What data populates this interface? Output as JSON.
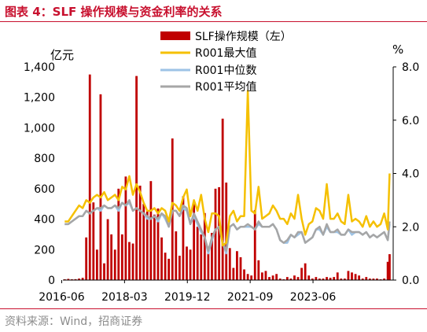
{
  "figure": {
    "title": "图表 4：SLF 操作规模与资金利率的关系",
    "source": "资料来源：Wind，招商证券"
  },
  "colors": {
    "bar": "#c00000",
    "max_line": "#f5c000",
    "median_line": "#9dc3e6",
    "avg_line": "#a6a6a6",
    "axis": "#000000",
    "title": "#c8102e"
  },
  "chart_data": {
    "type": "bar+line",
    "left_axis": {
      "unit": "亿元",
      "ylim": [
        0,
        1400
      ],
      "ticks": [
        "0",
        "200",
        "400",
        "600",
        "800",
        "1,000",
        "1,200",
        "1,400"
      ]
    },
    "right_axis": {
      "unit": "%",
      "ylim": [
        0,
        8
      ],
      "ticks": [
        "0.0",
        "2.0",
        "4.0",
        "6.0",
        "8.0"
      ]
    },
    "x_axis": {
      "start": 2016.45,
      "end": 2025.65,
      "ticks": [
        "2016-06",
        "2018-03",
        "2019-12",
        "2021-09",
        "2023-06"
      ]
    },
    "legend": {
      "position": "top-center",
      "entries": [
        "SLF操作规模（左）",
        "R001最大值",
        "R001中位数",
        "R001平均值"
      ]
    },
    "bars": {
      "name": "SLF操作规模（左）",
      "axis": "left",
      "x": [
        2016.5,
        2016.6,
        2016.7,
        2016.8,
        2016.9,
        2017.0,
        2017.1,
        2017.2,
        2017.3,
        2017.4,
        2017.5,
        2017.6,
        2017.7,
        2017.8,
        2017.9,
        2018.0,
        2018.1,
        2018.2,
        2018.3,
        2018.4,
        2018.5,
        2018.6,
        2018.7,
        2018.8,
        2018.9,
        2019.0,
        2019.1,
        2019.2,
        2019.3,
        2019.4,
        2019.5,
        2019.6,
        2019.7,
        2019.8,
        2019.9,
        2020.0,
        2020.1,
        2020.2,
        2020.3,
        2020.4,
        2020.5,
        2020.6,
        2020.7,
        2020.8,
        2020.9,
        2021.0,
        2021.1,
        2021.2,
        2021.3,
        2021.4,
        2021.5,
        2021.6,
        2021.7,
        2021.8,
        2021.9,
        2022.0,
        2022.1,
        2022.2,
        2022.3,
        2022.4,
        2022.5,
        2022.6,
        2022.7,
        2022.8,
        2022.9,
        2023.0,
        2023.1,
        2023.2,
        2023.3,
        2023.4,
        2023.5,
        2023.6,
        2023.7,
        2023.8,
        2023.9,
        2024.0,
        2024.1,
        2024.2,
        2024.3,
        2024.4,
        2024.5,
        2024.6,
        2024.7,
        2024.8,
        2024.9,
        2025.0,
        2025.1,
        2025.2,
        2025.3,
        2025.4,
        2025.5,
        2025.55
      ],
      "values": [
        5,
        8,
        5,
        6,
        10,
        15,
        280,
        1350,
        510,
        200,
        1220,
        110,
        400,
        300,
        200,
        600,
        300,
        680,
        250,
        240,
        1340,
        620,
        500,
        450,
        650,
        430,
        470,
        280,
        180,
        140,
        930,
        320,
        160,
        550,
        220,
        200,
        500,
        350,
        300,
        440,
        220,
        310,
        600,
        610,
        1060,
        640,
        210,
        80,
        190,
        150,
        70,
        40,
        30,
        460,
        130,
        50,
        60,
        20,
        30,
        40,
        10,
        5,
        20,
        10,
        30,
        20,
        80,
        110,
        30,
        10,
        20,
        10,
        10,
        20,
        15,
        20,
        50,
        10,
        10,
        60,
        50,
        40,
        30,
        10,
        20,
        10,
        10,
        10,
        5,
        10,
        120,
        170
      ]
    },
    "series": [
      {
        "name": "R001最大值",
        "axis": "right",
        "x": [
          2016.5,
          2016.6,
          2016.7,
          2016.8,
          2016.9,
          2017.0,
          2017.1,
          2017.2,
          2017.3,
          2017.4,
          2017.5,
          2017.6,
          2017.7,
          2017.8,
          2017.9,
          2018.0,
          2018.1,
          2018.2,
          2018.3,
          2018.4,
          2018.5,
          2018.6,
          2018.7,
          2018.8,
          2018.9,
          2019.0,
          2019.1,
          2019.2,
          2019.3,
          2019.4,
          2019.5,
          2019.6,
          2019.7,
          2019.8,
          2019.9,
          2020.0,
          2020.1,
          2020.2,
          2020.3,
          2020.4,
          2020.5,
          2020.6,
          2020.7,
          2020.8,
          2020.9,
          2021.0,
          2021.1,
          2021.2,
          2021.3,
          2021.4,
          2021.5,
          2021.6,
          2021.7,
          2021.8,
          2021.9,
          2022.0,
          2022.1,
          2022.2,
          2022.3,
          2022.4,
          2022.5,
          2022.6,
          2022.7,
          2022.8,
          2022.9,
          2023.0,
          2023.1,
          2023.2,
          2023.3,
          2023.4,
          2023.5,
          2023.6,
          2023.7,
          2023.8,
          2023.9,
          2024.0,
          2024.1,
          2024.2,
          2024.3,
          2024.4,
          2024.5,
          2024.6,
          2024.7,
          2024.8,
          2024.9,
          2025.0,
          2025.1,
          2025.2,
          2025.3,
          2025.4,
          2025.5,
          2025.55
        ],
        "values": [
          2.2,
          2.2,
          2.4,
          2.6,
          2.8,
          2.7,
          3.0,
          2.9,
          3.1,
          3.2,
          3.1,
          3.3,
          3.0,
          3.1,
          3.2,
          3.0,
          3.5,
          3.4,
          3.9,
          3.2,
          3.6,
          3.3,
          2.9,
          2.6,
          2.6,
          2.7,
          2.5,
          2.7,
          2.6,
          2.2,
          2.9,
          2.8,
          2.6,
          3.1,
          3.4,
          2.4,
          3.0,
          2.6,
          3.2,
          2.3,
          1.8,
          2.5,
          2.5,
          2.4,
          1.3,
          1.4,
          2.4,
          2.6,
          2.2,
          2.4,
          2.4,
          7.1,
          2.6,
          2.5,
          3.5,
          2.3,
          2.4,
          2.5,
          2.8,
          2.6,
          2.3,
          2.3,
          2.1,
          2.5,
          2.3,
          3.2,
          2.3,
          1.7,
          2.1,
          2.2,
          2.7,
          2.6,
          2.3,
          3.6,
          2.3,
          2.3,
          2.5,
          2.2,
          2.1,
          3.2,
          2.2,
          2.3,
          2.2,
          2.0,
          2.4,
          2.0,
          2.2,
          2.0,
          2.1,
          2.5,
          1.9,
          4.0
        ]
      },
      {
        "name": "R001中位数",
        "axis": "right",
        "x": [
          2016.5,
          2016.6,
          2016.7,
          2016.8,
          2016.9,
          2017.0,
          2017.1,
          2017.2,
          2017.3,
          2017.4,
          2017.5,
          2017.6,
          2017.7,
          2017.8,
          2017.9,
          2018.0,
          2018.1,
          2018.2,
          2018.3,
          2018.4,
          2018.5,
          2018.6,
          2018.7,
          2018.8,
          2018.9,
          2019.0,
          2019.1,
          2019.2,
          2019.3,
          2019.4,
          2019.5,
          2019.6,
          2019.7,
          2019.8,
          2019.9,
          2020.0,
          2020.1,
          2020.2,
          2020.3,
          2020.4,
          2020.5,
          2020.6,
          2020.7,
          2020.8,
          2020.9,
          2021.0,
          2021.1,
          2021.2,
          2021.3,
          2021.4,
          2021.5,
          2021.6,
          2021.7,
          2021.8,
          2021.9,
          2022.0,
          2022.1,
          2022.2,
          2022.3,
          2022.4,
          2022.5,
          2022.6,
          2022.7,
          2022.8,
          2022.9,
          2023.0,
          2023.1,
          2023.2,
          2023.3,
          2023.4,
          2023.5,
          2023.6,
          2023.7,
          2023.8,
          2023.9,
          2024.0,
          2024.1,
          2024.2,
          2024.3,
          2024.4,
          2024.5,
          2024.6,
          2024.7,
          2024.8,
          2024.9,
          2025.0,
          2025.1,
          2025.2,
          2025.3,
          2025.4,
          2025.5,
          2025.55
        ],
        "values": [
          2.1,
          2.1,
          2.2,
          2.3,
          2.4,
          2.4,
          2.6,
          2.5,
          2.6,
          2.7,
          2.6,
          2.8,
          2.7,
          2.7,
          2.8,
          2.6,
          2.9,
          2.8,
          2.9,
          2.6,
          2.7,
          2.6,
          2.5,
          2.3,
          2.3,
          2.4,
          2.2,
          2.5,
          2.3,
          2.0,
          2.6,
          2.6,
          2.4,
          2.7,
          2.6,
          2.1,
          2.4,
          2.1,
          1.8,
          1.6,
          1.0,
          1.5,
          1.9,
          2.0,
          1.4,
          1.0,
          2.0,
          2.1,
          1.9,
          2.0,
          2.0,
          2.0,
          2.0,
          1.9,
          2.1,
          2.0,
          2.0,
          2.0,
          2.1,
          1.9,
          1.5,
          1.4,
          1.4,
          1.7,
          1.6,
          1.7,
          1.8,
          1.4,
          1.5,
          1.6,
          1.9,
          1.9,
          1.7,
          2.0,
          1.8,
          1.8,
          1.8,
          1.7,
          1.7,
          1.9,
          1.7,
          1.8,
          1.8,
          1.7,
          1.8,
          1.6,
          1.7,
          1.6,
          1.7,
          1.8,
          1.5,
          2.1
        ]
      },
      {
        "name": "R001平均值",
        "axis": "right",
        "x": [
          2016.5,
          2016.6,
          2016.7,
          2016.8,
          2016.9,
          2017.0,
          2017.1,
          2017.2,
          2017.3,
          2017.4,
          2017.5,
          2017.6,
          2017.7,
          2017.8,
          2017.9,
          2018.0,
          2018.1,
          2018.2,
          2018.3,
          2018.4,
          2018.5,
          2018.6,
          2018.7,
          2018.8,
          2018.9,
          2019.0,
          2019.1,
          2019.2,
          2019.3,
          2019.4,
          2019.5,
          2019.6,
          2019.7,
          2019.8,
          2019.9,
          2020.0,
          2020.1,
          2020.2,
          2020.3,
          2020.4,
          2020.5,
          2020.6,
          2020.7,
          2020.8,
          2020.9,
          2021.0,
          2021.1,
          2021.2,
          2021.3,
          2021.4,
          2021.5,
          2021.6,
          2021.7,
          2021.8,
          2021.9,
          2022.0,
          2022.1,
          2022.2,
          2022.3,
          2022.4,
          2022.5,
          2022.6,
          2022.7,
          2022.8,
          2022.9,
          2023.0,
          2023.1,
          2023.2,
          2023.3,
          2023.4,
          2023.5,
          2023.6,
          2023.7,
          2023.8,
          2023.9,
          2024.0,
          2024.1,
          2024.2,
          2024.3,
          2024.4,
          2024.5,
          2024.6,
          2024.7,
          2024.8,
          2024.9,
          2025.0,
          2025.1,
          2025.2,
          2025.3,
          2025.4,
          2025.5,
          2025.55
        ],
        "values": [
          2.1,
          2.1,
          2.2,
          2.3,
          2.4,
          2.4,
          2.6,
          2.5,
          2.6,
          2.7,
          2.7,
          2.8,
          2.7,
          2.7,
          2.8,
          2.7,
          2.9,
          2.8,
          3.0,
          2.6,
          2.7,
          2.6,
          2.5,
          2.4,
          2.3,
          2.4,
          2.3,
          2.5,
          2.4,
          2.0,
          2.6,
          2.6,
          2.4,
          2.8,
          2.7,
          2.1,
          2.5,
          2.2,
          1.9,
          1.6,
          1.1,
          1.6,
          1.9,
          2.0,
          1.4,
          1.1,
          2.0,
          2.1,
          1.9,
          2.0,
          2.0,
          2.1,
          2.0,
          1.9,
          2.2,
          2.0,
          2.0,
          2.0,
          2.1,
          1.9,
          1.5,
          1.4,
          1.5,
          1.7,
          1.6,
          1.8,
          1.8,
          1.4,
          1.5,
          1.6,
          1.9,
          2.0,
          1.7,
          2.1,
          1.8,
          1.8,
          1.9,
          1.7,
          1.7,
          1.9,
          1.8,
          1.8,
          1.8,
          1.7,
          1.8,
          1.6,
          1.7,
          1.6,
          1.7,
          1.8,
          1.5,
          2.2
        ]
      }
    ]
  }
}
